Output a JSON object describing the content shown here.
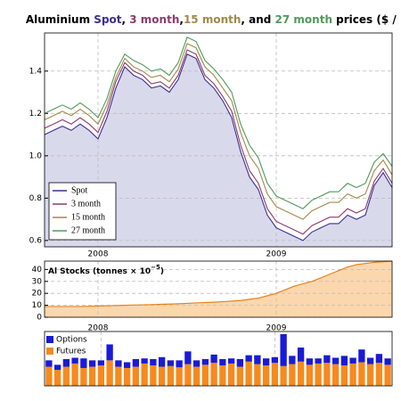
{
  "chart_data": [
    {
      "type": "line",
      "title_parts": [
        {
          "text": "Aluminium ",
          "color": "#000000"
        },
        {
          "text": "Spot",
          "color": "#3b2f8f"
        },
        {
          "text": ", ",
          "color": "#000000"
        },
        {
          "text": "3 month",
          "color": "#8e3a6d"
        },
        {
          "text": ",",
          "color": "#000000"
        },
        {
          "text": "15 month",
          "color": "#a08a4a"
        },
        {
          "text": ", and ",
          "color": "#000000"
        },
        {
          "text": "27 month",
          "color": "#4f9a5a"
        },
        {
          "text": " prices ($ / lb)",
          "color": "#000000"
        }
      ],
      "x": [
        2007.7,
        2007.75,
        2007.8,
        2007.85,
        2007.9,
        2007.95,
        2008.0,
        2008.05,
        2008.1,
        2008.15,
        2008.2,
        2008.25,
        2008.3,
        2008.35,
        2008.4,
        2008.45,
        2008.5,
        2008.55,
        2008.6,
        2008.65,
        2008.7,
        2008.75,
        2008.8,
        2008.85,
        2008.9,
        2008.95,
        2009.0,
        2009.05,
        2009.1,
        2009.15,
        2009.2,
        2009.25,
        2009.3,
        2009.35,
        2009.4,
        2009.45,
        2009.5,
        2009.55,
        2009.6,
        2009.65
      ],
      "series": [
        {
          "name": "Spot",
          "color": "#3b2f8f",
          "fill": "#d9d9ec",
          "values": [
            1.1,
            1.12,
            1.14,
            1.12,
            1.15,
            1.12,
            1.08,
            1.18,
            1.32,
            1.42,
            1.38,
            1.36,
            1.32,
            1.33,
            1.3,
            1.36,
            1.48,
            1.46,
            1.36,
            1.32,
            1.26,
            1.18,
            1.02,
            0.9,
            0.84,
            0.72,
            0.66,
            0.64,
            0.62,
            0.6,
            0.64,
            0.66,
            0.68,
            0.68,
            0.72,
            0.7,
            0.72,
            0.86,
            0.92,
            0.85
          ]
        },
        {
          "name": "3 month",
          "color": "#8e3a6d",
          "values": [
            1.13,
            1.15,
            1.17,
            1.15,
            1.18,
            1.15,
            1.11,
            1.21,
            1.35,
            1.44,
            1.4,
            1.38,
            1.34,
            1.35,
            1.32,
            1.38,
            1.5,
            1.48,
            1.38,
            1.34,
            1.28,
            1.21,
            1.05,
            0.93,
            0.87,
            0.75,
            0.69,
            0.67,
            0.65,
            0.63,
            0.67,
            0.69,
            0.71,
            0.71,
            0.75,
            0.73,
            0.75,
            0.88,
            0.94,
            0.87
          ]
        },
        {
          "name": "15 month",
          "color": "#a08a4a",
          "values": [
            1.17,
            1.19,
            1.21,
            1.19,
            1.22,
            1.19,
            1.15,
            1.24,
            1.37,
            1.46,
            1.42,
            1.4,
            1.37,
            1.38,
            1.35,
            1.41,
            1.53,
            1.51,
            1.42,
            1.38,
            1.32,
            1.26,
            1.11,
            1.0,
            0.94,
            0.82,
            0.76,
            0.74,
            0.72,
            0.7,
            0.74,
            0.76,
            0.78,
            0.78,
            0.82,
            0.8,
            0.82,
            0.93,
            0.98,
            0.91
          ]
        },
        {
          "name": "27 month",
          "color": "#4f9a5a",
          "values": [
            1.2,
            1.22,
            1.24,
            1.22,
            1.25,
            1.22,
            1.18,
            1.27,
            1.4,
            1.48,
            1.45,
            1.43,
            1.4,
            1.41,
            1.38,
            1.44,
            1.56,
            1.54,
            1.45,
            1.41,
            1.36,
            1.3,
            1.15,
            1.05,
            0.99,
            0.87,
            0.81,
            0.79,
            0.77,
            0.75,
            0.79,
            0.81,
            0.83,
            0.83,
            0.87,
            0.85,
            0.87,
            0.97,
            1.01,
            0.95
          ]
        }
      ],
      "xlim": [
        2007.7,
        2009.65
      ],
      "xticks": [
        2008,
        2009
      ],
      "ylim": [
        0.57,
        1.58
      ],
      "yticks": [
        0.6,
        0.8,
        {
          "value": 1,
          "label": "1.0"
        },
        1.2,
        1.4
      ],
      "grid": true,
      "legend": "lower-left"
    },
    {
      "type": "area",
      "title_main": "Al Stocks (tonnes × 10",
      "title_exp": "−5",
      "title_end": ")",
      "x": [
        2007.7,
        2007.75,
        2007.8,
        2007.85,
        2007.9,
        2007.95,
        2008.0,
        2008.05,
        2008.1,
        2008.15,
        2008.2,
        2008.25,
        2008.3,
        2008.35,
        2008.4,
        2008.45,
        2008.5,
        2008.55,
        2008.6,
        2008.65,
        2008.7,
        2008.75,
        2008.8,
        2008.85,
        2008.9,
        2008.95,
        2009.0,
        2009.05,
        2009.1,
        2009.15,
        2009.2,
        2009.25,
        2009.3,
        2009.35,
        2009.4,
        2009.45,
        2009.5,
        2009.55,
        2009.6,
        2009.65
      ],
      "values": [
        9,
        9,
        9,
        9,
        9,
        9.2,
        9.4,
        9.6,
        9.8,
        10,
        10.2,
        10.4,
        10.6,
        10.8,
        11,
        11.3,
        11.6,
        12,
        12.3,
        12.6,
        13,
        13.5,
        14,
        15,
        16,
        18,
        20,
        23,
        26,
        28,
        30,
        33,
        36,
        39,
        42,
        44,
        45,
        46,
        46.5,
        47
      ],
      "color": "#e8821e",
      "fill": "#fcd7ad",
      "xlim": [
        2007.7,
        2009.65
      ],
      "xticks": [
        2008,
        2009
      ],
      "ylim": [
        0,
        47
      ],
      "yticks": [
        0,
        10,
        20,
        30,
        40
      ],
      "grid": true
    },
    {
      "type": "stacked-bar",
      "x": [
        2007.7,
        2007.75,
        2007.8,
        2007.85,
        2007.9,
        2007.95,
        2008.0,
        2008.05,
        2008.1,
        2008.15,
        2008.2,
        2008.25,
        2008.3,
        2008.35,
        2008.4,
        2008.45,
        2008.5,
        2008.55,
        2008.6,
        2008.65,
        2008.7,
        2008.75,
        2008.8,
        2008.85,
        2008.9,
        2008.95,
        2009.0,
        2009.05,
        2009.1,
        2009.15,
        2009.2,
        2009.25,
        2009.3,
        2009.35,
        2009.4,
        2009.45,
        2009.5,
        2009.55,
        2009.6,
        2009.65
      ],
      "series": [
        {
          "name": "Futures",
          "color": "#f58a1f",
          "values": [
            3,
            2.5,
            3,
            3.5,
            2.8,
            3,
            3.2,
            4,
            3,
            2.8,
            3,
            3.5,
            3.2,
            3,
            3.1,
            2.9,
            3.4,
            3,
            3.3,
            3.6,
            3.2,
            3.5,
            3,
            3.8,
            3.4,
            3.2,
            3.6,
            3.1,
            3.4,
            3.8,
            3.3,
            3.5,
            3.6,
            3.4,
            3.2,
            3.5,
            3.7,
            3.4,
            3.6,
            3.3
          ]
        },
        {
          "name": "Options",
          "color": "#1a1ad6",
          "values": [
            1,
            0.8,
            1.2,
            0.9,
            1.5,
            1,
            0.8,
            2.5,
            1,
            0.9,
            1.2,
            0.8,
            1,
            1.5,
            0.9,
            1.1,
            2,
            1,
            0.9,
            1.3,
            1,
            0.8,
            1.2,
            1,
            1.4,
            1.1,
            0.9,
            5,
            1.3,
            2.2,
            1,
            0.8,
            1.2,
            1,
            1.5,
            0.9,
            2,
            1,
            1.4,
            1
          ]
        }
      ],
      "xlim": [
        2007.675,
        2009.675
      ],
      "xticks": [
        2008,
        2009
      ],
      "grid": true,
      "legend": "upper-left"
    }
  ]
}
